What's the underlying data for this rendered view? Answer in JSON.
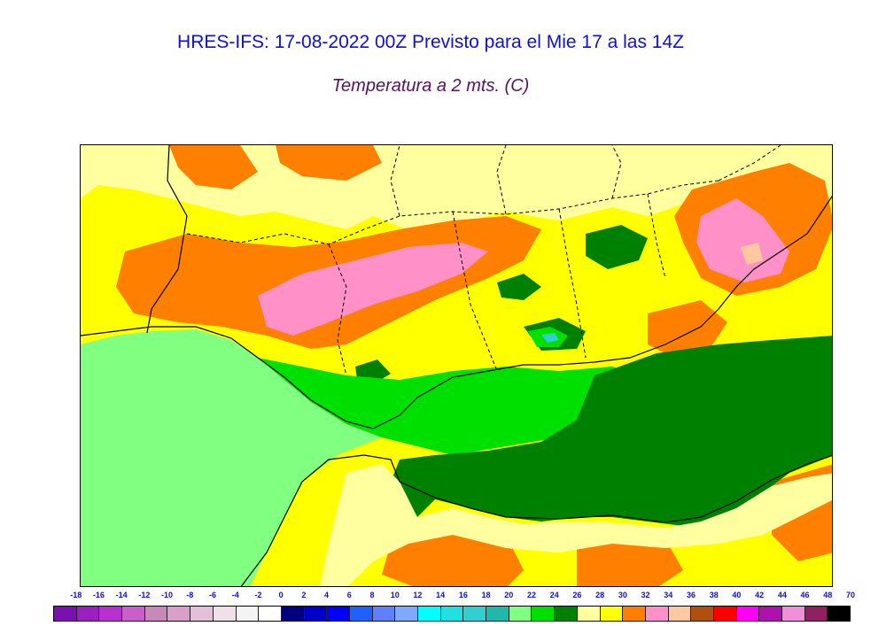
{
  "header": {
    "title": "HRES-IFS: 17-08-2022 00Z Previsto para el Mie 17 a las 14Z",
    "subtitle": "Temperatura a 2 mts. (C)"
  },
  "legend": {
    "tick_labels": [
      "-18",
      "-16",
      "-14",
      "-12",
      "-10",
      "-8",
      "-6",
      "-4",
      "-2",
      "0",
      "2",
      "4",
      "6",
      "8",
      "10",
      "12",
      "14",
      "16",
      "18",
      "20",
      "22",
      "24",
      "26",
      "28",
      "30",
      "32",
      "34",
      "36",
      "38",
      "40",
      "42",
      "44",
      "46",
      "48",
      "70"
    ],
    "colors": [
      "#7a10b0",
      "#9a20c0",
      "#b830d0",
      "#c860c8",
      "#c888b8",
      "#d8a0c8",
      "#e4c0d8",
      "#f0e0ea",
      "#f4f4f4",
      "#ffffff",
      "#000080",
      "#0000c8",
      "#0000ff",
      "#2060ff",
      "#6080ff",
      "#80a8ff",
      "#00ffff",
      "#20e0e0",
      "#30d0d0",
      "#20b8a8",
      "#80ff80",
      "#00e000",
      "#008000",
      "#ffffa0",
      "#ffff00",
      "#ff8000",
      "#ff90c8",
      "#ffc8a0",
      "#b05010",
      "#ff0000",
      "#ff00ff",
      "#b010b0",
      "#f090d8",
      "#902060",
      "#000000"
    ]
  },
  "map_colors": {
    "sea": "#80ff80",
    "t22_24": "#00e000",
    "t24_26": "#008000",
    "t26_28": "#ffffa0",
    "t28_30": "#ffff00",
    "t30_32": "#ff8000",
    "t32_34": "#ff90c8",
    "t34_36": "#ffc8a0",
    "t18_20": "#30d0d0",
    "t20_22": "#20b8a8"
  }
}
